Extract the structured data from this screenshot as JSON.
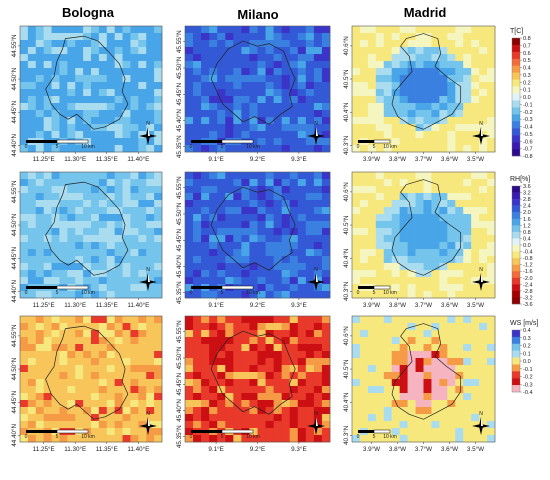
{
  "columns": [
    {
      "name": "Bologna",
      "lon_ticks": [
        "11.25°E",
        "11.30°E",
        "11.35°E",
        "11.40°E"
      ],
      "lat_ticks": [
        "44.40°N",
        "44.45°N",
        "44.50°N",
        "44.55°N"
      ]
    },
    {
      "name": "Milano",
      "lon_ticks": [
        "9.1°E",
        "9.2°E",
        "9.3°E"
      ],
      "lat_ticks": [
        "45.35°N",
        "45.40°N",
        "45.45°N",
        "45.50°N",
        "45.55°N"
      ]
    },
    {
      "name": "Madrid",
      "lon_ticks": [
        "3.9°W",
        "3.8°W",
        "3.7°W",
        "3.6°W",
        "3.5°W"
      ],
      "lat_ticks": [
        "40.3°N",
        "40.4°N",
        "40.5°N",
        "40.6°N"
      ]
    }
  ],
  "scale_bar": {
    "labels": [
      "0",
      "5",
      "10 km"
    ]
  },
  "north_arrow": {
    "label": "N"
  },
  "rows": [
    {
      "variable": "T[C]",
      "ticks": [
        "0.8",
        "0.7",
        "0.6",
        "0.5",
        "0.4",
        "0.3",
        "0.2",
        "0.1",
        "0.0",
        "-0.1",
        "-0.2",
        "-0.3",
        "-0.4",
        "-0.5",
        "-0.6",
        "-0.7",
        "-0.8"
      ],
      "colors": [
        "#8b0000",
        "#cc0f12",
        "#e8392a",
        "#f26b3a",
        "#f59b46",
        "#f7c55a",
        "#f7e87e",
        "#f5f5c0",
        "#e0f3f8",
        "#a9dcef",
        "#74c4ec",
        "#48a5e8",
        "#3a80e0",
        "#3359d6",
        "#3a34c8",
        "#3a1ab0",
        "#2b0a8c"
      ]
    },
    {
      "variable": "RH[%]",
      "ticks": [
        "3.6",
        "3.2",
        "2.8",
        "2.4",
        "2.0",
        "1.6",
        "1.2",
        "0.8",
        "0.4",
        "0.0",
        "-0.4",
        "-0.8",
        "-1.2",
        "-1.6",
        "-2.0",
        "-2.4",
        "-2.8",
        "-3.2",
        "-3.6"
      ],
      "colors": [
        "#2b0a8c",
        "#3a1ab0",
        "#3a34c8",
        "#3359d6",
        "#3a80e0",
        "#48a5e8",
        "#74c4ec",
        "#a9dcef",
        "#e0f3f8",
        "#f5f5c0",
        "#f7e87e",
        "#f7c55a",
        "#f59b46",
        "#f26b3a",
        "#e8392a",
        "#cc0f12",
        "#a50000",
        "#8b0000"
      ]
    },
    {
      "variable": "WS [m/s]",
      "ticks": [
        "0.4",
        "0.3",
        "0.2",
        "0.1",
        "0.0",
        "-0.1",
        "-0.2",
        "-0.3",
        "-0.4"
      ],
      "colors": [
        "#3a34c8",
        "#3a80e0",
        "#74c4ec",
        "#a9dcef",
        "#f7e87e",
        "#f59b46",
        "#e8392a",
        "#cc0f12",
        "#f5b4c0"
      ]
    }
  ],
  "map_colors": {
    "T": {
      "Bologna": [
        "#48a5e8",
        "#74c4ec",
        "#a9dcef"
      ],
      "Milano": [
        "#3359d6",
        "#3a80e0",
        "#3a34c8",
        "#48a5e8"
      ],
      "Madrid": [
        "#f7e87e",
        "#f5f5c0",
        "#a9dcef",
        "#74c4ec",
        "#48a5e8",
        "#3a80e0"
      ]
    },
    "RH": {
      "Bologna": [
        "#74c4ec",
        "#a9dcef",
        "#48a5e8"
      ],
      "Milano": [
        "#3359d6",
        "#3a80e0",
        "#3a34c8",
        "#48a5e8"
      ],
      "Madrid": [
        "#f7e87e",
        "#f5f5c0",
        "#a9dcef",
        "#74c4ec",
        "#48a5e8"
      ]
    },
    "WS": {
      "Bologna": [
        "#f7c55a",
        "#f59b46",
        "#f7e87e",
        "#e8392a"
      ],
      "Milano": [
        "#e8392a",
        "#cc0f12",
        "#f59b46",
        "#f7c55a"
      ],
      "Madrid": [
        "#f7e87e",
        "#a9dcef",
        "#f59b46",
        "#f5b4c0",
        "#cc0f12"
      ]
    }
  }
}
